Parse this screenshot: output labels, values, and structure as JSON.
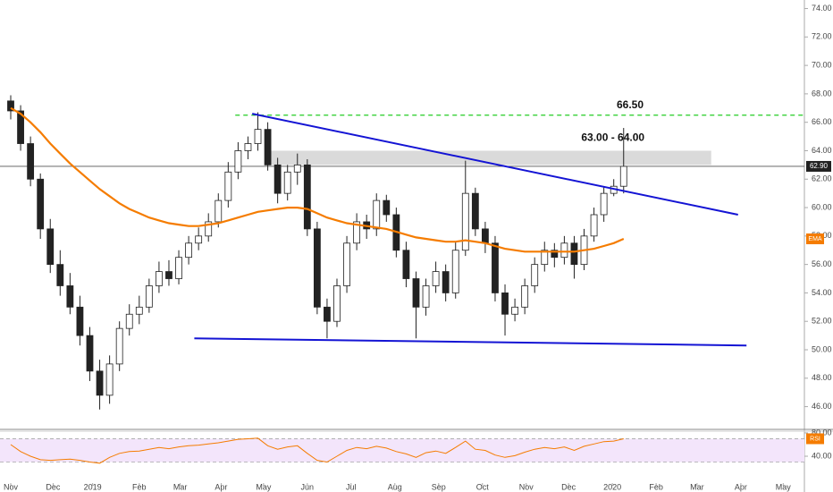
{
  "chart_data": [
    {
      "type": "candlestick",
      "x": [
        0,
        7,
        14,
        21,
        28,
        35,
        42,
        49,
        56,
        63,
        70,
        77,
        84,
        91,
        98,
        105,
        112,
        119,
        126,
        133,
        140,
        147,
        154,
        161,
        168,
        175,
        182,
        189,
        196,
        203,
        210,
        217,
        224,
        231,
        238,
        245,
        252,
        259,
        266,
        273,
        280,
        287,
        294,
        301,
        308,
        315,
        322,
        329,
        336,
        343,
        350,
        357,
        364,
        371,
        378,
        385,
        392,
        399,
        406,
        413,
        420,
        427,
        434
      ],
      "candles": [
        [
          67.5,
          67.9,
          66.2,
          66.8
        ],
        [
          66.8,
          67.2,
          64.0,
          64.5
        ],
        [
          64.5,
          65.0,
          61.5,
          62.0
        ],
        [
          62.0,
          62.4,
          57.8,
          58.5
        ],
        [
          58.5,
          59.2,
          55.4,
          56.0
        ],
        [
          56.0,
          57.0,
          53.8,
          54.5
        ],
        [
          54.5,
          55.4,
          52.5,
          53.0
        ],
        [
          53.0,
          53.8,
          50.3,
          51.0
        ],
        [
          51.0,
          51.6,
          47.8,
          48.5
        ],
        [
          48.5,
          49.3,
          45.8,
          46.8
        ],
        [
          46.8,
          49.6,
          46.2,
          49.0
        ],
        [
          49.0,
          52.0,
          48.5,
          51.5
        ],
        [
          51.5,
          53.2,
          51.0,
          52.5
        ],
        [
          52.5,
          53.8,
          51.8,
          53.0
        ],
        [
          53.0,
          55.0,
          52.6,
          54.5
        ],
        [
          54.5,
          56.2,
          54.0,
          55.5
        ],
        [
          55.5,
          56.3,
          54.5,
          55.0
        ],
        [
          55.0,
          57.0,
          54.6,
          56.5
        ],
        [
          56.5,
          58.0,
          56.0,
          57.5
        ],
        [
          57.5,
          58.6,
          57.0,
          58.0
        ],
        [
          58.0,
          59.6,
          57.6,
          59.0
        ],
        [
          59.0,
          61.0,
          58.6,
          60.5
        ],
        [
          60.5,
          63.2,
          60.0,
          62.5
        ],
        [
          62.5,
          64.6,
          62.0,
          64.0
        ],
        [
          64.0,
          65.0,
          63.4,
          64.5
        ],
        [
          64.5,
          66.7,
          64.0,
          65.5
        ],
        [
          65.5,
          66.0,
          62.6,
          63.0
        ],
        [
          63.0,
          63.5,
          60.3,
          61.0
        ],
        [
          61.0,
          63.0,
          60.5,
          62.5
        ],
        [
          62.5,
          63.8,
          61.6,
          63.0
        ],
        [
          63.0,
          63.4,
          58.0,
          58.5
        ],
        [
          58.5,
          59.0,
          52.5,
          53.0
        ],
        [
          53.0,
          53.6,
          50.8,
          52.0
        ],
        [
          52.0,
          55.0,
          51.6,
          54.5
        ],
        [
          54.5,
          58.0,
          54.0,
          57.5
        ],
        [
          57.5,
          59.6,
          57.0,
          59.0
        ],
        [
          59.0,
          59.5,
          57.8,
          58.5
        ],
        [
          58.5,
          61.0,
          58.0,
          60.5
        ],
        [
          60.5,
          60.9,
          59.0,
          59.5
        ],
        [
          59.5,
          60.0,
          56.5,
          57.0
        ],
        [
          57.0,
          57.6,
          54.4,
          55.0
        ],
        [
          55.0,
          55.5,
          50.8,
          53.0
        ],
        [
          53.0,
          55.0,
          52.4,
          54.5
        ],
        [
          54.5,
          56.2,
          54.0,
          55.5
        ],
        [
          55.5,
          56.0,
          53.4,
          54.0
        ],
        [
          54.0,
          57.6,
          53.6,
          57.0
        ],
        [
          57.0,
          63.3,
          56.6,
          61.0
        ],
        [
          61.0,
          61.4,
          58.0,
          58.5
        ],
        [
          58.5,
          59.0,
          56.8,
          57.5
        ],
        [
          57.5,
          58.0,
          53.4,
          54.0
        ],
        [
          54.0,
          54.6,
          51.0,
          52.5
        ],
        [
          52.5,
          53.6,
          52.0,
          53.0
        ],
        [
          53.0,
          55.0,
          52.5,
          54.5
        ],
        [
          54.5,
          56.5,
          54.0,
          56.0
        ],
        [
          56.0,
          57.6,
          55.5,
          57.0
        ],
        [
          57.0,
          57.5,
          55.8,
          56.5
        ],
        [
          56.5,
          58.0,
          56.0,
          57.5
        ],
        [
          57.5,
          58.0,
          55.0,
          56.0
        ],
        [
          56.0,
          58.5,
          55.6,
          58.0
        ],
        [
          58.0,
          60.0,
          57.6,
          59.5
        ],
        [
          59.5,
          61.5,
          59.0,
          61.0
        ],
        [
          61.0,
          62.0,
          60.8,
          61.5
        ],
        [
          61.5,
          65.6,
          61.0,
          62.9
        ]
      ],
      "series": [
        {
          "name": "EMA",
          "color": "#f57c00",
          "values": [
            67.0,
            66.6,
            66.0,
            65.3,
            64.5,
            63.8,
            63.1,
            62.5,
            61.9,
            61.3,
            60.8,
            60.3,
            59.9,
            59.6,
            59.3,
            59.1,
            58.9,
            58.8,
            58.7,
            58.7,
            58.8,
            58.9,
            59.1,
            59.3,
            59.5,
            59.7,
            59.8,
            59.9,
            60.0,
            60.0,
            59.9,
            59.6,
            59.3,
            59.1,
            58.9,
            58.8,
            58.7,
            58.6,
            58.5,
            58.3,
            58.1,
            57.9,
            57.8,
            57.7,
            57.6,
            57.6,
            57.7,
            57.6,
            57.5,
            57.3,
            57.1,
            57.0,
            56.9,
            56.9,
            56.9,
            56.9,
            56.9,
            56.9,
            57.0,
            57.1,
            57.3,
            57.5,
            57.8
          ]
        }
      ],
      "trendlines": [
        {
          "x": [
            171,
            515
          ],
          "y": [
            66.6,
            59.5
          ],
          "color": "#1414d4"
        },
        {
          "x": [
            130,
            521
          ],
          "y": [
            50.8,
            50.3
          ],
          "color": "#1414d4"
        }
      ],
      "target": {
        "value": 66.5,
        "label": "66.50",
        "x": [
          159,
          562
        ],
        "color": "#22cc22"
      },
      "zone": {
        "low": 63,
        "high": 64,
        "label": "63.00 - 64.00",
        "x": [
          180,
          496
        ]
      },
      "last_price": {
        "value": 62.9,
        "label": "62.90"
      },
      "xlim": [
        -7.6,
        562
      ],
      "ylim": [
        44.4,
        74.6
      ],
      "yticks": [
        {
          "value": 46,
          "label": "46.00"
        },
        {
          "value": 48,
          "label": "48.00"
        },
        {
          "value": 50,
          "label": "50.00"
        },
        {
          "value": 52,
          "label": "52.00"
        },
        {
          "value": 54,
          "label": "54.00"
        },
        {
          "value": 56,
          "label": "56.00"
        },
        {
          "value": 58,
          "label": "58.00"
        },
        {
          "value": 60,
          "label": "60.00"
        },
        {
          "value": 62,
          "label": "62.00"
        },
        {
          "value": 64,
          "label": "64.00"
        },
        {
          "value": 66,
          "label": "66.00"
        },
        {
          "value": 68,
          "label": "68.00"
        },
        {
          "value": 70,
          "label": "70.00"
        },
        {
          "value": 72,
          "label": "72.00"
        },
        {
          "value": 74,
          "label": "74.00"
        }
      ],
      "xticks": [
        {
          "value": 0,
          "label": "Nov"
        },
        {
          "value": 30,
          "label": "Dec"
        },
        {
          "value": 58,
          "label": "2019"
        },
        {
          "value": 91,
          "label": "Feb"
        },
        {
          "value": 120,
          "label": "Mar"
        },
        {
          "value": 149,
          "label": "Apr"
        },
        {
          "value": 179,
          "label": "May"
        },
        {
          "value": 210,
          "label": "Jun"
        },
        {
          "value": 241,
          "label": "Jul"
        },
        {
          "value": 272,
          "label": "Aug"
        },
        {
          "value": 303,
          "label": "Sep"
        },
        {
          "value": 334,
          "label": "Oct"
        },
        {
          "value": 365,
          "label": "Nov"
        },
        {
          "value": 395,
          "label": "Dec"
        },
        {
          "value": 426,
          "label": "2020"
        },
        {
          "value": 457,
          "label": "Feb"
        },
        {
          "value": 486,
          "label": "Mar"
        },
        {
          "value": 517,
          "label": "Apr"
        },
        {
          "value": 547,
          "label": "May"
        }
      ]
    },
    {
      "type": "line",
      "series": [
        {
          "name": "RSI",
          "color": "#f57c00",
          "values": [
            60,
            48,
            40,
            34,
            33,
            34,
            35,
            33,
            30,
            28,
            38,
            45,
            48,
            49,
            52,
            55,
            53,
            56,
            58,
            59,
            61,
            63,
            66,
            69,
            70,
            71,
            58,
            52,
            56,
            58,
            45,
            33,
            30,
            40,
            50,
            55,
            53,
            57,
            54,
            48,
            44,
            38,
            46,
            49,
            45,
            55,
            66,
            52,
            50,
            42,
            38,
            41,
            47,
            52,
            55,
            53,
            56,
            50,
            57,
            61,
            65,
            66,
            70
          ]
        }
      ],
      "bands": [
        70,
        30
      ],
      "ylim": [
        -6,
        83
      ],
      "yticks": [
        {
          "value": 80,
          "label": "80.00"
        },
        {
          "value": 40,
          "label": "40.00"
        }
      ]
    }
  ]
}
